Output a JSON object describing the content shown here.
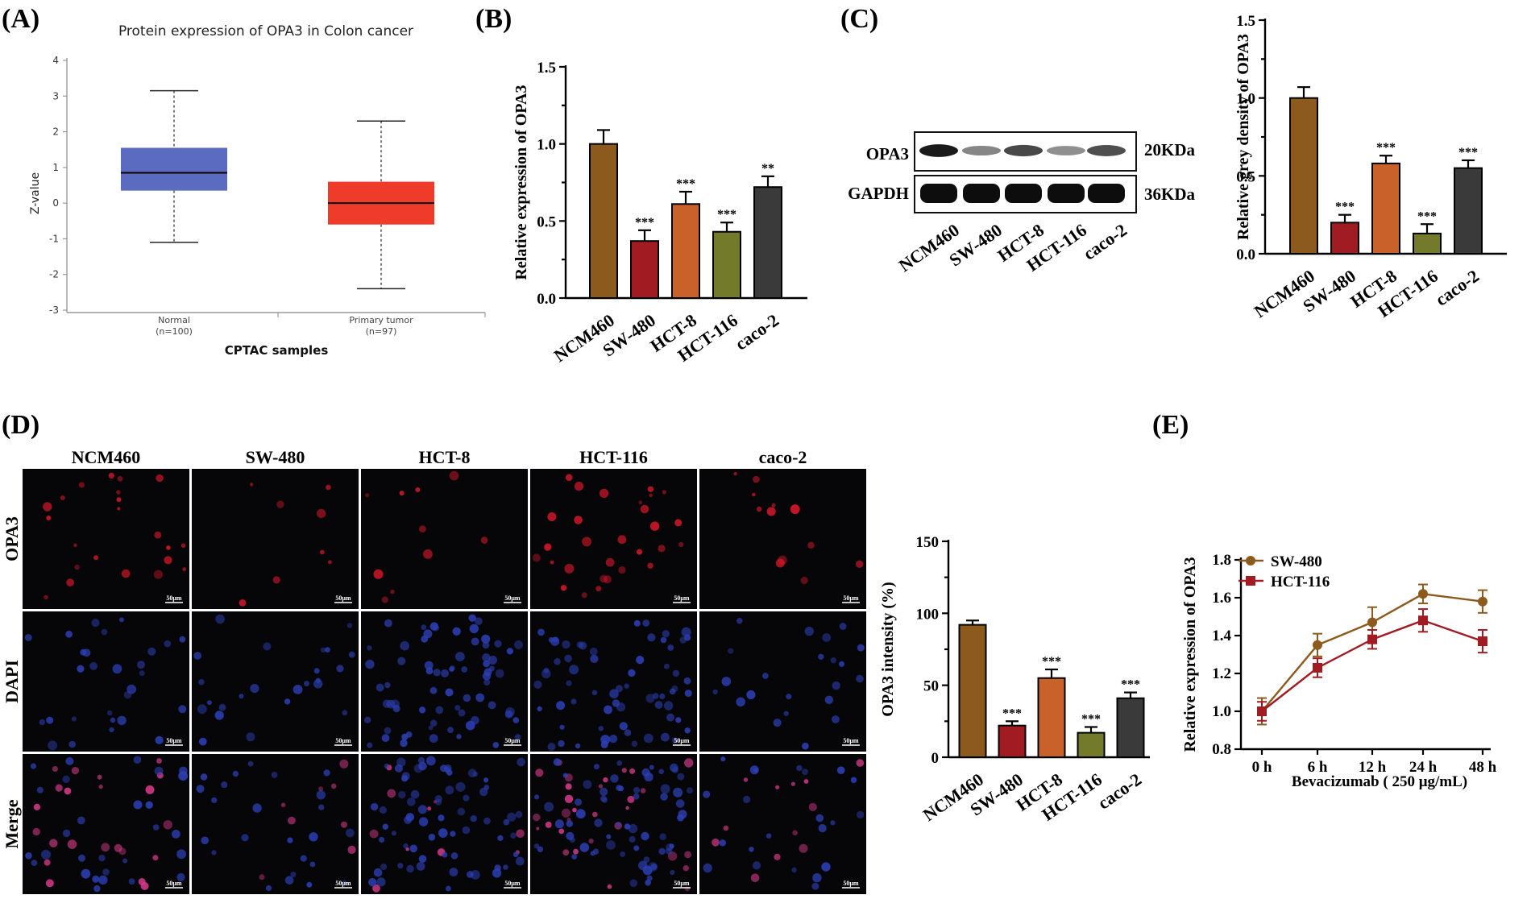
{
  "panels": {
    "A": "(A)",
    "B": "(B)",
    "C": "(C)",
    "D": "(D)",
    "E": "(E)"
  },
  "colors": {
    "NCM460": "#8C5A1C",
    "SW-480": "#A11C22",
    "HCT-8": "#C8612A",
    "HCT-116": "#737A2A",
    "caco-2": "#3A3A3A",
    "normal_box": "#5B6BBF",
    "tumor_box": "#EE3B2A"
  },
  "blot": {
    "row_labels": [
      "OPA3",
      "GAPDH"
    ],
    "kda_labels": [
      "20KDa",
      "36KDa"
    ],
    "lanes": [
      "NCM460",
      "SW-480",
      "HCT-8",
      "HCT-116",
      "caco-2"
    ],
    "opa3_intensity": [
      0.95,
      0.35,
      0.7,
      0.3,
      0.65
    ],
    "gapdh_intensity": [
      1,
      1,
      1,
      1,
      1
    ]
  },
  "micro": {
    "columns": [
      "NCM460",
      "SW-480",
      "HCT-8",
      "HCT-116",
      "caco-2"
    ],
    "rows": [
      "OPA3",
      "DAPI",
      "Merge"
    ],
    "scalebar": "50μm"
  },
  "chart_data": [
    {
      "id": "A",
      "type": "box",
      "title": "Protein expression of OPA3 in Colon cancer",
      "xlabel": "CPTAC samples",
      "ylabel": "Z-value",
      "ylim": [
        -3,
        4
      ],
      "yticks": [
        4,
        3,
        2,
        1,
        0,
        -1,
        -2,
        -3
      ],
      "groups": [
        {
          "name": "Normal",
          "n": "(n=100)",
          "min": -1.1,
          "q1": 0.35,
          "median": 0.85,
          "q3": 1.55,
          "max": 3.15,
          "color_key": "normal_box"
        },
        {
          "name": "Primary tumor",
          "n": "(n=97)",
          "min": -2.4,
          "q1": -0.6,
          "median": 0.0,
          "q3": 0.6,
          "max": 2.3,
          "color_key": "tumor_box"
        }
      ]
    },
    {
      "id": "B",
      "type": "bar",
      "ylabel": "Relative expression of OPA3",
      "ylim": [
        0,
        1.5
      ],
      "yticks": [
        "1.5",
        "1.0",
        "0.5",
        "0.0"
      ],
      "categories": [
        "NCM460",
        "SW-480",
        "HCT-8",
        "HCT-116",
        "caco-2"
      ],
      "values": [
        1.0,
        0.37,
        0.61,
        0.43,
        0.72
      ],
      "errors": [
        0.09,
        0.07,
        0.08,
        0.06,
        0.07
      ],
      "significance": [
        "",
        "***",
        "***",
        "***",
        "**"
      ]
    },
    {
      "id": "C",
      "type": "bar",
      "ylabel": "Relative grey density of OPA3",
      "ylim": [
        0,
        1.5
      ],
      "yticks": [
        "1.5",
        "1.0",
        "0.5",
        "0.0"
      ],
      "categories": [
        "NCM460",
        "SW-480",
        "HCT-8",
        "HCT-116",
        "caco-2"
      ],
      "values": [
        1.0,
        0.2,
        0.58,
        0.13,
        0.55
      ],
      "errors": [
        0.07,
        0.05,
        0.05,
        0.06,
        0.05
      ],
      "significance": [
        "",
        "***",
        "***",
        "***",
        "***"
      ]
    },
    {
      "id": "D",
      "type": "bar",
      "ylabel": "OPA3 intensity (%)",
      "ylim": [
        0,
        150
      ],
      "yticks": [
        "150",
        "100",
        "50",
        "0"
      ],
      "categories": [
        "NCM460",
        "SW-480",
        "HCT-8",
        "HCT-116",
        "caco-2"
      ],
      "values": [
        92,
        22,
        55,
        17,
        41
      ],
      "errors": [
        3,
        3,
        6,
        4,
        4
      ],
      "significance": [
        "",
        "***",
        "***",
        "***",
        "***"
      ]
    },
    {
      "id": "E",
      "type": "line",
      "ylabel": "Relative expression of OPA3",
      "xlabel": "Bevacizumab ( 250 μg/mL)",
      "ylim": [
        0.8,
        1.8
      ],
      "yticks": [
        "1.8",
        "1.6",
        "1.4",
        "1.2",
        "1.0",
        "0.8"
      ],
      "x": [
        "0 h",
        "6 h",
        "12 h",
        "24 h",
        "48 h"
      ],
      "series": [
        {
          "name": "SW-480",
          "values": [
            1.0,
            1.35,
            1.47,
            1.62,
            1.58
          ],
          "errors": [
            0.07,
            0.06,
            0.08,
            0.05,
            0.06
          ],
          "marker": "circle",
          "color_key": "NCM460"
        },
        {
          "name": "HCT-116",
          "values": [
            1.0,
            1.23,
            1.38,
            1.48,
            1.37
          ],
          "errors": [
            0.05,
            0.05,
            0.05,
            0.06,
            0.06
          ],
          "marker": "square",
          "color_key": "SW-480"
        }
      ]
    }
  ]
}
